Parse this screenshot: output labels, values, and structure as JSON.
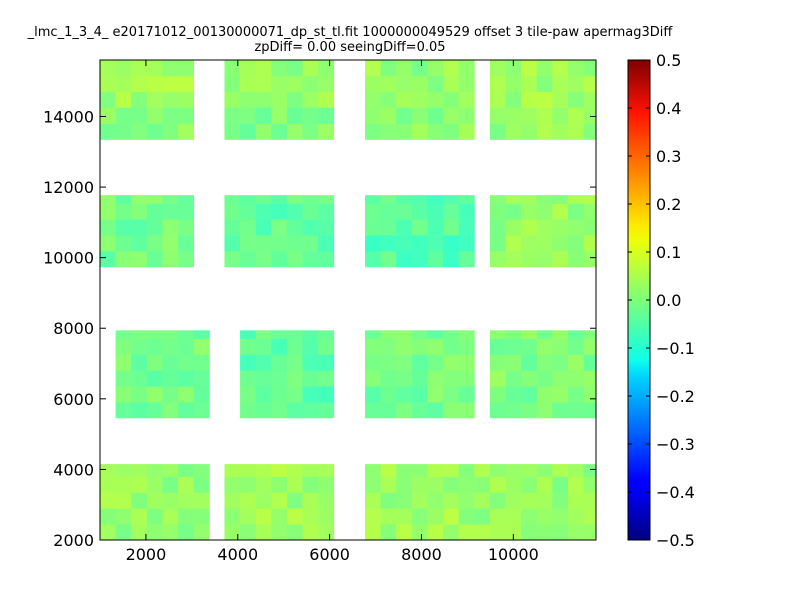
{
  "chart_data": {
    "type": "heatmap",
    "title_line1": "_lmc_1_3_4_ e20171012_00130000071_dp_st_tl.fit 1000000049529 offset 3 tile-paw apermag3Diff",
    "title_line2": "zpDiff= 0.00 seeingDiff=0.05",
    "xlabel": "",
    "ylabel": "",
    "xlim": [
      1000,
      11800
    ],
    "ylim": [
      2000,
      15600
    ],
    "x_ticks": [
      2000,
      4000,
      6000,
      8000,
      10000
    ],
    "y_ticks": [
      2000,
      4000,
      6000,
      8000,
      10000,
      12000,
      14000
    ],
    "colorbar": {
      "colormap": "jet",
      "vmin": -0.5,
      "vmax": 0.5,
      "ticks": [
        "0.5",
        "0.4",
        "0.3",
        "0.2",
        "0.1",
        "0.0",
        "−0.1",
        "−0.2",
        "−0.3",
        "−0.4",
        "−0.5"
      ]
    },
    "grid": false,
    "cell_size": [
      340,
      450
    ],
    "blocks": [
      {
        "x": [
          1000,
          3040
        ],
        "y": [
          14250,
          15600
        ],
        "value": 0.03
      },
      {
        "x": [
          3710,
          6090
        ],
        "y": [
          14250,
          15600
        ],
        "value": 0.02
      },
      {
        "x": [
          6770,
          9150
        ],
        "y": [
          14250,
          15600
        ],
        "value": 0.02
      },
      {
        "x": [
          9490,
          11800
        ],
        "y": [
          14250,
          15600
        ],
        "value": 0.03
      },
      {
        "x": [
          1000,
          3040
        ],
        "y": [
          13350,
          14250
        ],
        "value": 0.01
      },
      {
        "x": [
          3710,
          6090
        ],
        "y": [
          13350,
          14250
        ],
        "value": 0.0
      },
      {
        "x": [
          6770,
          9150
        ],
        "y": [
          13350,
          14250
        ],
        "value": 0.01
      },
      {
        "x": [
          9490,
          11800
        ],
        "y": [
          13350,
          14250
        ],
        "value": 0.02
      },
      {
        "x": [
          1000,
          3040
        ],
        "y": [
          9740,
          11770
        ],
        "value": -0.01
      },
      {
        "x": [
          3710,
          6090
        ],
        "y": [
          9740,
          11770
        ],
        "value": -0.03
      },
      {
        "x": [
          6770,
          9150
        ],
        "y": [
          9740,
          11770
        ],
        "value": -0.04
      },
      {
        "x": [
          9490,
          11800
        ],
        "y": [
          9740,
          11770
        ],
        "value": 0.02
      },
      {
        "x": [
          1340,
          3380
        ],
        "y": [
          5460,
          7940
        ],
        "value": -0.01
      },
      {
        "x": [
          4050,
          6090
        ],
        "y": [
          5460,
          7940
        ],
        "value": -0.03
      },
      {
        "x": [
          6770,
          9150
        ],
        "y": [
          5460,
          7940
        ],
        "value": -0.01
      },
      {
        "x": [
          9490,
          11800
        ],
        "y": [
          5460,
          7940
        ],
        "value": 0.0
      },
      {
        "x": [
          1000,
          3380
        ],
        "y": [
          2000,
          4150
        ],
        "value": 0.02
      },
      {
        "x": [
          3710,
          6090
        ],
        "y": [
          2000,
          4150
        ],
        "value": 0.03
      },
      {
        "x": [
          6770,
          9150
        ],
        "y": [
          2000,
          4150
        ],
        "value": 0.03
      },
      {
        "x": [
          9150,
          11800
        ],
        "y": [
          2000,
          4150
        ],
        "value": 0.02
      }
    ]
  }
}
